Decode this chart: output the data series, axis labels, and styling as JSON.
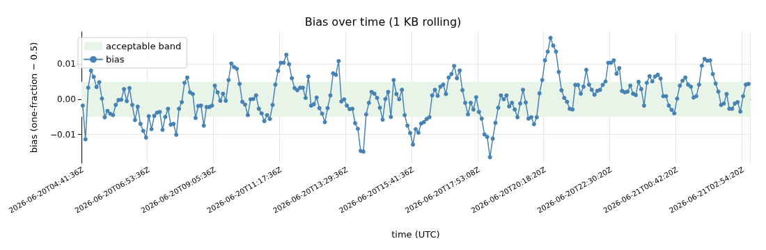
{
  "chart_data": {
    "type": "line",
    "title": "Bias over time (1 KB rolling)",
    "xlabel": "time (UTC)",
    "ylabel": "bias (one-fraction − 0.5)",
    "categories": [
      "2026-06-20T04:41:36Z",
      null,
      null,
      null,
      null,
      null,
      null,
      null,
      null,
      null,
      null,
      null,
      null,
      null,
      null,
      null,
      null,
      null,
      null,
      null,
      null,
      null,
      null,
      null,
      "2026-06-20T06:53:36Z",
      null,
      null,
      null,
      null,
      null,
      null,
      null,
      null,
      null,
      null,
      null,
      null,
      null,
      null,
      null,
      null,
      null,
      null,
      null,
      null,
      null,
      null,
      null,
      "2026-06-20T09:05:36Z",
      null,
      null,
      null,
      null,
      null,
      null,
      null,
      null,
      null,
      null,
      null,
      null,
      null,
      null,
      null,
      null,
      null,
      null,
      null,
      null,
      null,
      null,
      null,
      "2026-06-20T11:17:36Z",
      null,
      null,
      null,
      null,
      null,
      null,
      null,
      null,
      null,
      null,
      null,
      null,
      null,
      null,
      null,
      null,
      null,
      null,
      null,
      null,
      null,
      null,
      null,
      "2026-06-20T13:29:36Z",
      null,
      null,
      null,
      null,
      null,
      null,
      null,
      null,
      null,
      null,
      null,
      null,
      null,
      null,
      null,
      null,
      null,
      null,
      null,
      null,
      null,
      null,
      null,
      "2026-06-20T15:41:36Z",
      null,
      null,
      null,
      null,
      null,
      null,
      null,
      null,
      null,
      null,
      null,
      null,
      null,
      null,
      null,
      null,
      null,
      null,
      null,
      null,
      null,
      null,
      null,
      "2026-06-20T17:53:08Z",
      null,
      null,
      null,
      null,
      null,
      null,
      null,
      null,
      null,
      null,
      null,
      null,
      null,
      null,
      null,
      null,
      null,
      null,
      null,
      null,
      null,
      null,
      null,
      "2026-06-20T20:18:20Z",
      null,
      null,
      null,
      null,
      null,
      null,
      null,
      null,
      null,
      null,
      null,
      null,
      null,
      null,
      null,
      null,
      null,
      null,
      null,
      null,
      null,
      null,
      null,
      "2026-06-20T22:30:20Z",
      null,
      null,
      null,
      null,
      null,
      null,
      null,
      null,
      null,
      null,
      null,
      null,
      null,
      null,
      null,
      null,
      null,
      null,
      null,
      null,
      null,
      null,
      null,
      "2026-06-21T00:42:20Z",
      null,
      null,
      null,
      null,
      null,
      null,
      null,
      null,
      null,
      null,
      null,
      null,
      null,
      null,
      null,
      null,
      null,
      null,
      null,
      null,
      null,
      null,
      null,
      "2026-06-21T02:54:20Z",
      null,
      null
    ],
    "series": [
      {
        "name": "bias",
        "color": "#4682b4",
        "values": [
          -0.0018,
          -0.0114,
          0.0033,
          0.0082,
          0.0064,
          0.0035,
          0.0049,
          0.0002,
          -0.0051,
          -0.0033,
          -0.0041,
          -0.0045,
          -0.0016,
          -0.0002,
          -0.0001,
          0.0029,
          -0.0005,
          0.0032,
          -0.0016,
          -0.0059,
          -0.0021,
          -0.007,
          -0.009,
          -0.0109,
          -0.0048,
          -0.0085,
          -0.0047,
          -0.0038,
          -0.0036,
          -0.0087,
          -0.005,
          -0.0027,
          -0.0072,
          -0.007,
          -0.0101,
          -0.0027,
          -0.0008,
          0.0047,
          0.0062,
          0.002,
          0.0015,
          -0.0053,
          -0.0019,
          -0.0018,
          -0.0075,
          -0.0022,
          -0.0022,
          -0.0018,
          0.0039,
          0.002,
          -0.0004,
          0.0016,
          -0.0004,
          0.0055,
          0.0102,
          0.0092,
          0.0087,
          0.0044,
          -0.0007,
          -0.0015,
          -0.0045,
          0.0,
          0.0001,
          0.0011,
          -0.0027,
          -0.004,
          -0.0062,
          -0.0045,
          -0.0056,
          -0.0016,
          0.0042,
          0.0081,
          0.0104,
          0.0104,
          0.0127,
          0.01,
          0.006,
          0.0032,
          0.0026,
          0.0033,
          0.0033,
          0.0004,
          0.0065,
          -0.0018,
          -0.0014,
          0.0005,
          -0.0025,
          -0.0041,
          -0.0065,
          -0.0025,
          0.0011,
          0.0074,
          0.007,
          0.0109,
          -0.0006,
          0.0,
          -0.0018,
          -0.0028,
          -0.0027,
          -0.0068,
          -0.0084,
          -0.0147,
          -0.0149,
          -0.0043,
          -0.001,
          0.0021,
          0.0016,
          0.0004,
          -0.0024,
          -0.0058,
          0.0001,
          0.0021,
          -0.005,
          0.0055,
          0.0015,
          0.0,
          0.0027,
          -0.0045,
          -0.0075,
          -0.0096,
          -0.0129,
          -0.0085,
          -0.0095,
          -0.0069,
          -0.0065,
          -0.0056,
          -0.0051,
          0.0011,
          0.0027,
          0.001,
          0.0036,
          0.0042,
          0.0015,
          0.0062,
          0.0072,
          0.0095,
          0.006,
          0.0082,
          0.0026,
          -0.001,
          -0.0043,
          -0.001,
          -0.0029,
          0.0006,
          -0.0036,
          -0.0055,
          -0.01,
          -0.0107,
          -0.0165,
          -0.0112,
          -0.0067,
          -0.0024,
          0.0011,
          0.0,
          0.0011,
          -0.002,
          -0.001,
          -0.0029,
          -0.0051,
          -0.0012,
          0.0027,
          -0.0009,
          -0.0055,
          -0.0051,
          -0.0071,
          -0.0051,
          0.0017,
          0.0055,
          0.0111,
          0.0136,
          0.0175,
          0.0153,
          0.0136,
          0.0078,
          0.0026,
          0.0004,
          -0.0007,
          -0.0027,
          -0.0029,
          0.0041,
          0.0041,
          0.0016,
          0.0036,
          0.0084,
          0.0042,
          0.0027,
          0.0013,
          0.0024,
          0.0027,
          0.0041,
          0.0051,
          0.0104,
          0.0104,
          0.0111,
          0.0073,
          0.0089,
          0.0024,
          0.002,
          0.0022,
          0.0039,
          0.0016,
          0.0012,
          0.005,
          0.0029,
          -0.0018,
          0.0047,
          0.0066,
          0.0051,
          0.0065,
          0.007,
          0.0059,
          0.0009,
          0.0009,
          -0.0018,
          -0.003,
          -0.004,
          0.0002,
          0.0039,
          0.0053,
          0.0062,
          0.0042,
          0.0036,
          0.0005,
          0.0009,
          0.0042,
          0.0096,
          0.0115,
          0.011,
          0.0111,
          0.0072,
          0.0045,
          0.0022,
          -0.0016,
          -0.0012,
          0.0015,
          -0.0027,
          -0.0027,
          -0.0012,
          -0.0008,
          -0.0035,
          0.0009,
          0.0042,
          0.0044
        ]
      }
    ],
    "bands": [
      {
        "axis": "y",
        "from": -0.005,
        "to": 0.005,
        "label": "acceptable band",
        "color": "#e9f4e9"
      }
    ],
    "ylim": [
      -0.0182,
      0.0192
    ],
    "yticks": [
      {
        "value": -0.01,
        "label": "−0.01"
      },
      {
        "value": 0,
        "label": "0.00"
      },
      {
        "value": 0.01,
        "label": "0.01"
      }
    ],
    "grid": true,
    "legend": "top left",
    "marker": "circle",
    "line_style": "solid"
  }
}
